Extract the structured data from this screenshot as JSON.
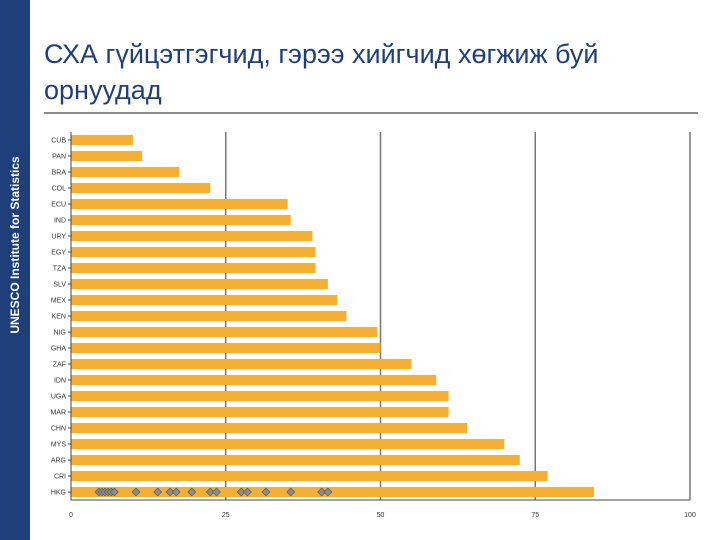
{
  "sidebar": {
    "label": "UNESCO Institute for Statistics"
  },
  "slide": {
    "title": "СХА гүйцэтгэгчид, гэрээ хийгчид хөгжиж буй орнуудад"
  },
  "colors": {
    "bar": "#f5af32",
    "marker": "#8c8c8c",
    "accent": "#1f3f7a",
    "grid": "#777777"
  },
  "chart_data": {
    "type": "bar",
    "orientation": "horizontal",
    "categories": [
      "CUB",
      "PAN",
      "BRA",
      "COL",
      "ECU",
      "IND",
      "URY",
      "EGY",
      "TZA",
      "SLV",
      "MEX",
      "KEN",
      "NIG",
      "GHA",
      "ZAF",
      "IDN",
      "UGA",
      "MAR",
      "CHN",
      "MYS",
      "ARG",
      "CRI",
      "HKG"
    ],
    "values": [
      10,
      11.5,
      17.5,
      22.5,
      35,
      35.5,
      39,
      39.5,
      39.5,
      41.5,
      43,
      44.5,
      49.5,
      50,
      55,
      59,
      61,
      61,
      64,
      70,
      72.5,
      77,
      84.5
    ],
    "x_ticks": [
      "0",
      "25",
      "50",
      "75",
      "100"
    ],
    "xlim": [
      0,
      100
    ],
    "grid": "vertical",
    "markers_on_last_row": [
      4.5,
      5,
      5.5,
      6,
      6.5,
      7,
      10.5,
      14,
      16,
      17,
      19.5,
      22.5,
      23.5,
      27.5,
      28.5,
      31.5,
      35.5,
      40.5,
      41.5
    ]
  }
}
